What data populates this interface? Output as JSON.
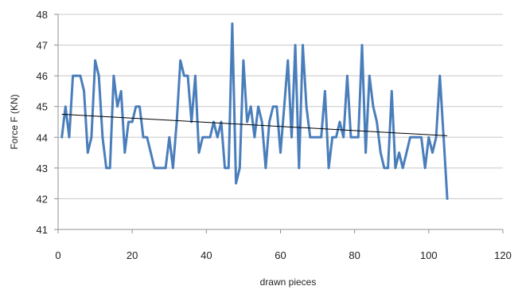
{
  "chart_data": {
    "type": "line",
    "title": "",
    "xlabel": "drawn pieces",
    "ylabel": "Force  F (KN)",
    "xlim": [
      0,
      120
    ],
    "ylim": [
      41,
      48
    ],
    "x_ticks": [
      0,
      20,
      40,
      60,
      80,
      100,
      120
    ],
    "y_ticks": [
      41,
      42,
      43,
      44,
      45,
      46,
      47,
      48
    ],
    "x_tick_labels": [
      "0",
      "20",
      "40",
      "60",
      "80",
      "100",
      "120"
    ],
    "y_tick_labels": [
      "41",
      "42",
      "43",
      "44",
      "45",
      "46",
      "47",
      "48"
    ],
    "grid": "horizontal major gridlines",
    "legend": "none",
    "colors": {
      "series": "#4a7ebb",
      "trend": "#000000",
      "grid": "#c8c8c8",
      "axis": "#909090"
    },
    "series": [
      {
        "kind": "data",
        "x": [
          1,
          2,
          3,
          4,
          5,
          6,
          7,
          8,
          9,
          10,
          11,
          12,
          13,
          14,
          15,
          16,
          17,
          18,
          19,
          20,
          21,
          22,
          23,
          24,
          25,
          26,
          27,
          28,
          29,
          30,
          31,
          32,
          33,
          34,
          35,
          36,
          37,
          38,
          39,
          40,
          41,
          42,
          43,
          44,
          45,
          46,
          47,
          48,
          49,
          50,
          51,
          52,
          53,
          54,
          55,
          56,
          57,
          58,
          59,
          60,
          61,
          62,
          63,
          64,
          65,
          66,
          67,
          68,
          69,
          70,
          71,
          72,
          73,
          74,
          75,
          76,
          77,
          78,
          79,
          80,
          81,
          82,
          83,
          84,
          85,
          86,
          87,
          88,
          89,
          90,
          91,
          92,
          93,
          94,
          95,
          96,
          97,
          98,
          99,
          100,
          101,
          102,
          103,
          104,
          105
        ],
        "y": [
          44,
          45,
          44,
          46,
          46,
          46,
          45.5,
          43.5,
          44,
          46.5,
          46,
          44,
          43,
          43,
          46,
          45,
          45.5,
          43.5,
          44.5,
          44.5,
          45,
          45,
          44,
          44,
          43.5,
          43,
          43,
          43,
          43,
          44,
          43,
          44.5,
          46.5,
          46,
          46,
          44.5,
          46,
          43.5,
          44,
          44,
          44,
          44.5,
          44,
          44.5,
          43,
          43,
          47.7,
          42.5,
          43,
          46.5,
          44.5,
          45,
          44,
          45,
          44.5,
          43,
          44.5,
          45,
          45,
          43.5,
          45,
          46.5,
          44,
          47,
          43,
          47,
          45,
          44,
          44,
          44,
          44,
          45.5,
          43,
          44,
          44,
          44.5,
          44,
          46,
          44,
          44,
          44,
          47,
          43.5,
          46,
          45,
          44.5,
          43.5,
          43,
          43,
          45.5,
          43,
          43.5,
          43,
          43.5,
          44,
          44,
          44,
          44,
          43,
          44,
          43.5,
          44,
          46,
          44,
          42
        ]
      },
      {
        "kind": "trend",
        "x": [
          1,
          105
        ],
        "y": [
          44.75,
          44.05
        ]
      }
    ]
  }
}
